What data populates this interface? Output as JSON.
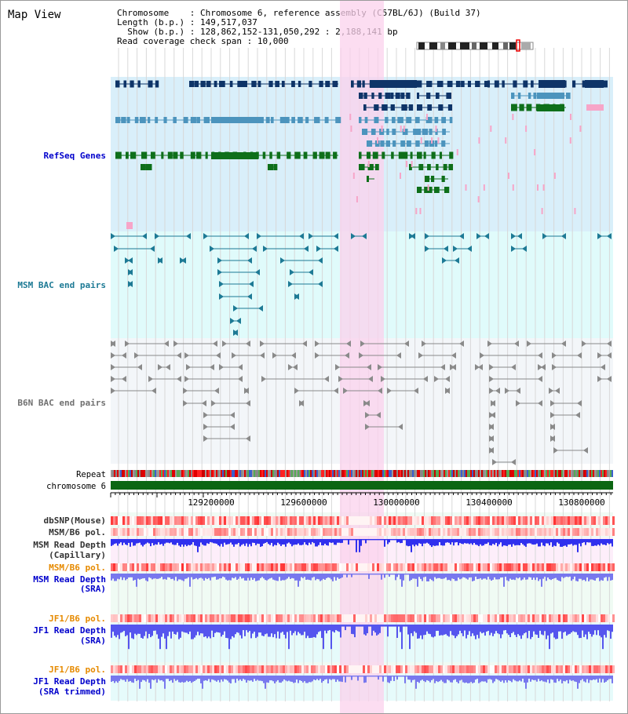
{
  "title": "Map View",
  "info": {
    "chromosome_label": "Chromosome",
    "chromosome_value": "Chromosome 6, reference assembly (C57BL/6J) (Build 37)",
    "length_label": "Length (b.p.)",
    "length_value": "149,517,037",
    "show_label": "Show (b.p.)",
    "show_value": "128,862,152-131,050,292 : 2,188,141 bp",
    "coverage_label": "Read coverage check span",
    "coverage_value": "10,000"
  },
  "tracks": {
    "refseq": "RefSeq Genes",
    "msm_bac": "MSM BAC end pairs",
    "b6n_bac": "B6N BAC end pairs",
    "repeat": "Repeat",
    "chromosome": "chromosome 6",
    "dbsnp": "dbSNP(Mouse)",
    "msm_b6_pol_1": "MSM/B6 pol.",
    "msm_read_depth_cap_1": "MSM Read Depth",
    "msm_read_depth_cap_2": "(Capillary)",
    "msm_b6_pol_2": "MSM/B6 pol.",
    "msm_read_depth_sra_1": "MSM Read Depth",
    "msm_read_depth_sra_2": "(SRA)",
    "jf1_b6_pol_1": "JF1/B6 pol.",
    "jf1_read_depth_sra_1": "JF1 Read Depth",
    "jf1_read_depth_sra_2": "(SRA)",
    "jf1_b6_pol_2": "JF1/B6 pol.",
    "jf1_read_depth_trim_1": "JF1 Read Depth",
    "jf1_read_depth_trim_2": "(SRA trimmed)"
  },
  "axis": {
    "ticks": [
      "129200000",
      "129600000",
      "130000000",
      "130400000",
      "130800000"
    ]
  },
  "colors": {
    "refseq_bg": "#d9effa",
    "msm_bg": "#e0fbfb",
    "b6n_bg": "#f3f6f9",
    "highlight": "#fbd2ec",
    "gene_dark": "#0e3468",
    "gene_mid": "#4c94bd",
    "gene_green": "#0e6f1a",
    "gene_pink": "#f7a5c8",
    "msm_feature": "#1d7a95",
    "b6n_feature": "#8a8a8a",
    "chrom_green": "#0c6612",
    "label_blue": "#0000cc",
    "label_orange": "#e68a00",
    "depth_blue": "#5555ee"
  }
}
